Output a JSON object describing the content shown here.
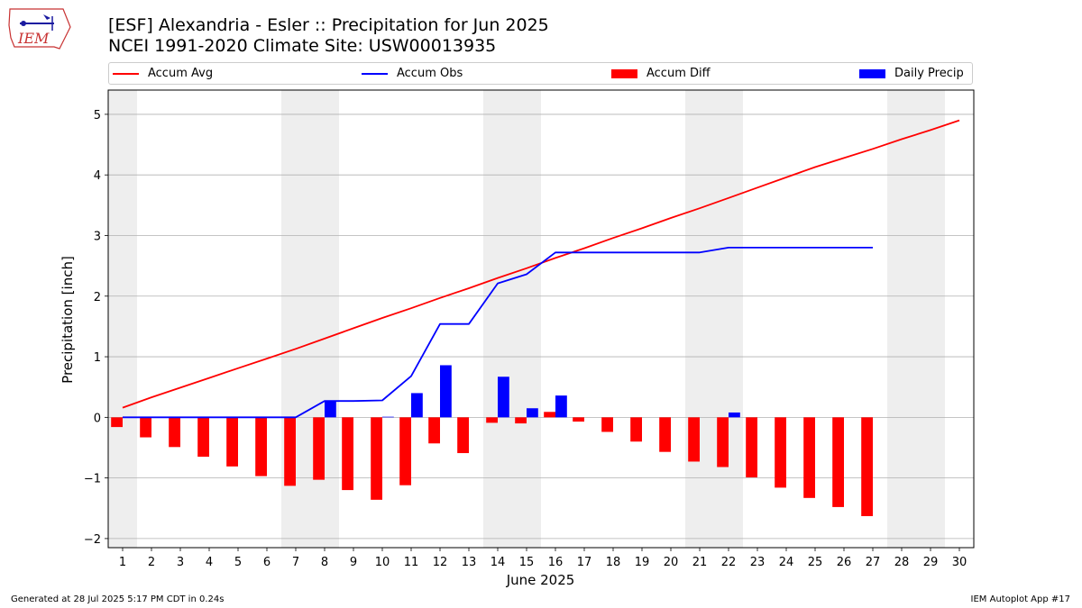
{
  "header": {
    "logo_text": "IEM",
    "title_line1": "[ESF] Alexandria - Esler :: Precipitation for Jun 2025",
    "title_line2": "NCEI 1991-2020 Climate Site: USW00013935"
  },
  "footer": {
    "left": "Generated at 28 Jul 2025 5:17 PM CDT in 0.24s",
    "right": "IEM Autoplot App #17"
  },
  "colors": {
    "avg": "#ff0000",
    "obs": "#0000ff",
    "diff": "#ff0000",
    "daily": "#0000ff",
    "weekend_band": "#eeeeee",
    "grid": "#b0b0b0"
  },
  "chart_data": {
    "type": "bar",
    "xlabel": "June 2025",
    "ylabel": "Precipitation [inch]",
    "x": [
      1,
      2,
      3,
      4,
      5,
      6,
      7,
      8,
      9,
      10,
      11,
      12,
      13,
      14,
      15,
      16,
      17,
      18,
      19,
      20,
      21,
      22,
      23,
      24,
      25,
      26,
      27,
      28,
      29,
      30
    ],
    "xlim": [
      0.5,
      30.5
    ],
    "ylim": [
      -2.15,
      5.4
    ],
    "yticks": [
      -2,
      -1,
      0,
      1,
      2,
      3,
      4,
      5
    ],
    "grid": "horizontal",
    "legend_position": "top",
    "weekend_days": [
      1,
      7,
      8,
      14,
      15,
      21,
      22,
      28,
      29
    ],
    "series": [
      {
        "name": "Accum Avg",
        "kind": "line",
        "values": [
          0.16,
          0.33,
          0.49,
          0.65,
          0.81,
          0.97,
          1.13,
          1.3,
          1.47,
          1.64,
          1.8,
          1.97,
          2.13,
          2.3,
          2.46,
          2.63,
          2.79,
          2.96,
          3.12,
          3.29,
          3.45,
          3.62,
          3.79,
          3.96,
          4.13,
          4.28,
          4.43,
          4.59,
          4.74,
          4.9
        ]
      },
      {
        "name": "Accum Obs",
        "kind": "line",
        "values": [
          0,
          0,
          0,
          0,
          0,
          0,
          0,
          0.27,
          0.27,
          0.28,
          0.68,
          1.54,
          1.54,
          2.21,
          2.36,
          2.72,
          2.72,
          2.72,
          2.72,
          2.72,
          2.72,
          2.8,
          2.8,
          2.8,
          2.8,
          2.8,
          2.8,
          null,
          null,
          null
        ]
      },
      {
        "name": "Accum Diff",
        "kind": "bar",
        "values": [
          -0.16,
          -0.33,
          -0.49,
          -0.65,
          -0.81,
          -0.97,
          -1.13,
          -1.03,
          -1.2,
          -1.36,
          -1.12,
          -0.43,
          -0.59,
          -0.09,
          -0.1,
          0.09,
          -0.07,
          -0.24,
          -0.4,
          -0.57,
          -0.73,
          -0.82,
          -0.99,
          -1.16,
          -1.33,
          -1.48,
          -1.63,
          null,
          null,
          null
        ]
      },
      {
        "name": "Daily Precip",
        "kind": "bar",
        "values": [
          0,
          0,
          0,
          0,
          0,
          0,
          0,
          0.27,
          0,
          0.01,
          0.4,
          0.86,
          0,
          0.67,
          0.15,
          0.36,
          0,
          0,
          0,
          0,
          0,
          0.08,
          0,
          0,
          0,
          0,
          0,
          null,
          null,
          null
        ]
      }
    ]
  }
}
